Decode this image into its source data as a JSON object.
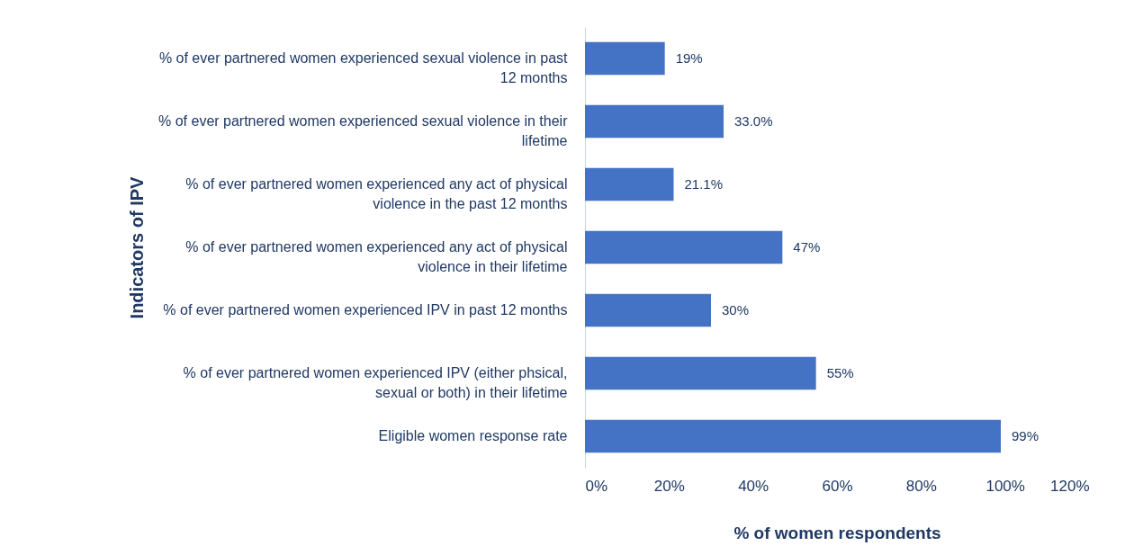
{
  "chart_data": {
    "type": "bar",
    "orientation": "horizontal",
    "xlabel": "% of women respondents",
    "ylabel": "Indicators of IPV",
    "categories": [
      "% of ever partnered women experienced sexual violence in past 12 months",
      "% of ever partnered women experienced sexual violence in their lifetime",
      "% of ever partnered women experienced any act of physical violence in the past 12 months",
      "% of ever partnered women experienced any act of physical violence in their lifetime",
      "% of ever partnered women experienced IPV in past 12 months",
      "% of ever partnered women experienced IPV (either phsical, sexual or both) in their lifetime",
      "Eligible women response rate"
    ],
    "values": [
      19,
      33.0,
      21.1,
      47,
      30,
      55,
      99
    ],
    "value_labels": [
      "19%",
      "33.0%",
      "21.1%",
      "47%",
      "30%",
      "55%",
      "99%"
    ],
    "color": "#4472c4",
    "xlim": [
      0,
      120
    ],
    "xticks": [
      {
        "value": 0,
        "label": "0%"
      },
      {
        "value": 20,
        "label": "20%"
      },
      {
        "value": 40,
        "label": "40%"
      },
      {
        "value": 60,
        "label": "60%"
      },
      {
        "value": 80,
        "label": "80%"
      },
      {
        "value": 100,
        "label": "100%"
      },
      {
        "value": 120,
        "label": "120%"
      }
    ],
    "grid": false
  }
}
